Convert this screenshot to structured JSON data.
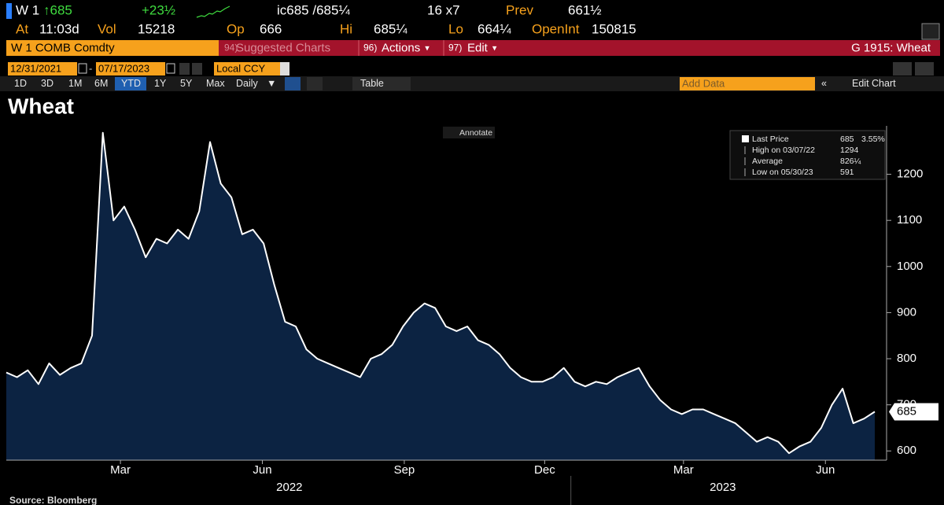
{
  "header": {
    "ticker": "W 1",
    "last": "↑685",
    "change": "+23½",
    "quote": "ic685 /685¼",
    "size": "16 x7",
    "prev_label": "Prev",
    "prev": "661½"
  },
  "stats": [
    {
      "label": "At",
      "value": "11:03d"
    },
    {
      "label": "Vol",
      "value": "15218"
    },
    {
      "label": "Op",
      "value": "666"
    },
    {
      "label": "Hi",
      "value": "685¼"
    },
    {
      "label": "Lo",
      "value": "664¼"
    },
    {
      "label": "OpenInt",
      "value": "150815"
    }
  ],
  "toolbar": {
    "security": "W 1 COMB Comdty",
    "menus": [
      {
        "key": "94)",
        "label": "Suggested Charts"
      },
      {
        "key": "96)",
        "label": "Actions"
      },
      {
        "key": "97)",
        "label": "Edit"
      }
    ],
    "function": "G 1915: Wheat"
  },
  "range": {
    "start": "12/31/2021",
    "end": "07/17/2023",
    "currency": "Local CCY"
  },
  "periods": [
    "1D",
    "3D",
    "1M",
    "6M",
    "YTD",
    "1Y",
    "5Y",
    "Max"
  ],
  "active_period": 4,
  "frequency": "Daily",
  "table_button": "Table",
  "add_data": "Add Data",
  "edit_chart": "Edit Chart",
  "chart_data": {
    "type": "area",
    "title": "Wheat",
    "annotate": "Annotate",
    "series": [
      {
        "name": "Last Price",
        "color": "#ffffff",
        "fill": "#0c2342",
        "values": [
          770,
          760,
          775,
          745,
          790,
          765,
          780,
          790,
          850,
          1290,
          1100,
          1130,
          1080,
          1020,
          1060,
          1050,
          1080,
          1060,
          1120,
          1270,
          1180,
          1150,
          1070,
          1080,
          1050,
          960,
          880,
          870,
          820,
          800,
          790,
          780,
          770,
          760,
          800,
          810,
          830,
          870,
          900,
          920,
          910,
          870,
          860,
          870,
          840,
          830,
          810,
          780,
          760,
          750,
          750,
          760,
          780,
          750,
          740,
          750,
          745,
          760,
          770,
          780,
          740,
          710,
          690,
          680,
          690,
          690,
          680,
          670,
          660,
          640,
          620,
          630,
          620,
          595,
          610,
          620,
          650,
          700,
          735,
          660,
          670,
          685
        ]
      }
    ],
    "legend": [
      {
        "label": "Last Price",
        "value": 685,
        "change": "3.55%"
      },
      {
        "label": "High on 03/07/22",
        "value": 1294
      },
      {
        "label": "Average",
        "value": "826¼"
      },
      {
        "label": "Low on 05/30/23",
        "value": 591
      }
    ],
    "ylim": [
      580,
      1305
    ],
    "yticks": [
      600,
      700,
      800,
      900,
      1000,
      1100,
      1200
    ],
    "xticks": [
      {
        "value": "2022-03",
        "label": "Mar"
      },
      {
        "value": "2022-06",
        "label": "Jun"
      },
      {
        "value": "2022-09",
        "label": "Sep"
      },
      {
        "value": "2022-12",
        "label": "Dec"
      },
      {
        "value": "2023-03",
        "label": "Mar"
      },
      {
        "value": "2023-06",
        "label": "Jun"
      }
    ],
    "years": [
      "2022",
      "2023"
    ],
    "source": "Source: Bloomberg"
  }
}
